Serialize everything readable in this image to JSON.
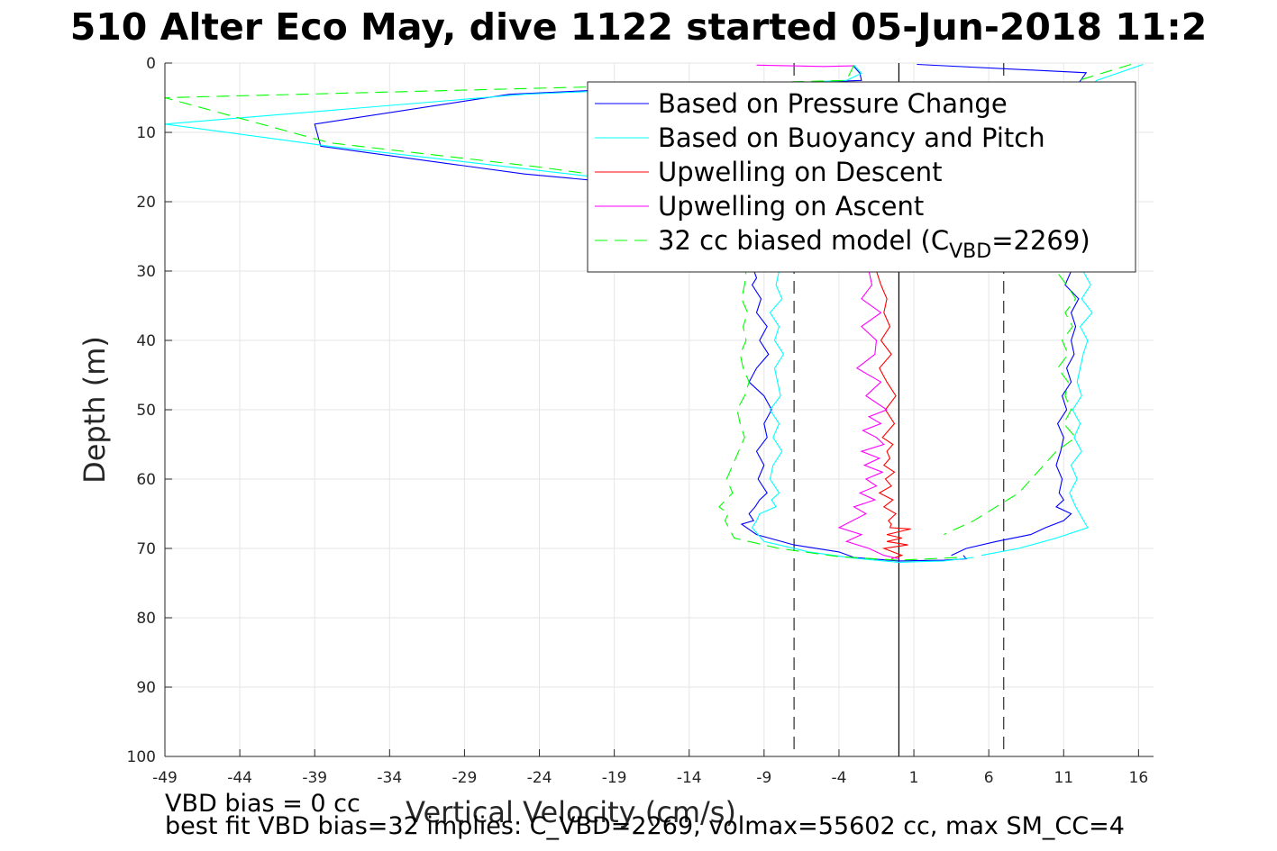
{
  "chart_data": {
    "type": "line",
    "title": "510 Alter Eco May, dive 1122 started 05-Jun-2018 11:2",
    "xlabel": "Vertical Velocity (cm/s)",
    "ylabel": "Depth (m)",
    "xlim": [
      -49,
      17
    ],
    "ylim": [
      0,
      100
    ],
    "y_reversed": true,
    "grid": true,
    "xticks": [
      "-49",
      "-44",
      "-39",
      "-34",
      "-29",
      "-24",
      "-19",
      "-14",
      "-9",
      "-4",
      "1",
      "6",
      "11",
      "16"
    ],
    "yticks": [
      "0",
      "10",
      "20",
      "30",
      "40",
      "50",
      "60",
      "70",
      "80",
      "90",
      "100"
    ],
    "legend_position": "top-right",
    "reference_lines": {
      "zero_velocity": 0,
      "dashed_vertical": [
        -7,
        7
      ]
    },
    "series": [
      {
        "name": "Based on Pressure Change",
        "color": "#0000ff",
        "dash": "solid",
        "segments": [
          {
            "x": [
              -3,
              -2.6,
              -2.5,
              -19,
              -26,
              -39,
              -38.6,
              -25,
              -20,
              -16,
              -14,
              -12.5,
              -11,
              -10,
              -9.5,
              -9.8,
              -9.2,
              -9.5,
              -8.8,
              -9.3,
              -8.7,
              -9.5,
              -10,
              -9,
              -8.5,
              -9,
              -8.8,
              -9.5,
              -9,
              -9.4,
              -8.8,
              -9.3,
              -9.6,
              -10,
              -9.7,
              -10.5,
              -9.5,
              -7,
              -4,
              -3,
              0,
              3,
              4.5,
              4.3
            ],
            "y": [
              0.5,
              1.5,
              2.5,
              3.8,
              4.5,
              8.8,
              12,
              16,
              17,
              18,
              19,
              22,
              25,
              28,
              31,
              32,
              34,
              36,
              38,
              40,
              42,
              44,
              46,
              48,
              50,
              52,
              54,
              56,
              58,
              60,
              62,
              63,
              64,
              65,
              66,
              66.5,
              68,
              69.5,
              70.5,
              71.3,
              71.8,
              71.7,
              71.5,
              71.0
            ]
          },
          {
            "x": [
              1.2,
              12.5,
              11.3,
              11.4,
              10.8,
              11.2,
              10.5,
              11.5,
              11.1,
              12,
              11.5,
              11.8,
              11.5,
              11.7,
              11.2,
              11.5,
              10.9,
              11.2,
              10.6,
              11.0,
              10.8,
              10.5,
              10.9,
              10.7,
              11.0,
              10.5,
              11.5,
              11.0,
              9.8,
              8.8,
              6.5,
              4.5,
              3.5
            ],
            "y": [
              0.2,
              1.4,
              5,
              10,
              15,
              20,
              25,
              30,
              32,
              34,
              36,
              38,
              40,
              42,
              44,
              46,
              48,
              50,
              52,
              54,
              56,
              58,
              60,
              62,
              63,
              64,
              65,
              66,
              67,
              68,
              69,
              70,
              71
            ]
          }
        ]
      },
      {
        "name": "Based on Buoyancy and Pitch",
        "color": "#00ffff",
        "dash": "solid",
        "segments": [
          {
            "x": [
              -3,
              -2.5,
              -3.5,
              -25,
              -49,
              -38,
              -24,
              -18,
              -15,
              -13,
              -11.5,
              -10.8,
              -8,
              -8.2,
              -7.8,
              -8.6,
              -8,
              -8.3,
              -7.7,
              -8.3,
              -8.1,
              -7.9,
              -8.6,
              -8,
              -8.4,
              -7.8,
              -8.4,
              -8.6,
              -8,
              -8.5,
              -8.2,
              -9.3,
              -9.5,
              -9.8,
              -9,
              -6,
              -3,
              0,
              3,
              5
            ],
            "y": [
              0.3,
              1.5,
              2.5,
              4.5,
              8.8,
              12,
              15.5,
              17,
              18,
              21,
              24,
              27,
              30,
              32,
              34,
              36,
              38,
              40,
              42,
              44,
              46,
              48,
              50,
              52,
              54,
              56,
              58,
              60,
              62,
              63,
              64,
              65,
              66,
              67,
              69,
              70.5,
              71.4,
              72,
              71.8,
              71.3
            ]
          },
          {
            "x": [
              16.3,
              13.2,
              12,
              12.2,
              12.6,
              11.8,
              12.6,
              12.3,
              12.8,
              12.2,
              12.9,
              12.1,
              12.6,
              12.3,
              12.1,
              11.9,
              12.2,
              11.6,
              12.1,
              11.7,
              12.2,
              11.5,
              11.9,
              11.4,
              11.8,
              12.6,
              10.5,
              8,
              5.5
            ],
            "y": [
              0.2,
              2.5,
              5,
              10,
              15,
              20,
              25,
              30,
              32,
              34,
              36,
              38,
              40,
              42,
              44,
              46,
              48,
              50,
              52,
              54,
              56,
              58,
              60,
              62,
              64,
              67,
              68.5,
              70,
              71
            ]
          }
        ]
      },
      {
        "name": "Upwelling on Descent",
        "color": "#ff0000",
        "dash": "solid",
        "segments": [
          {
            "x": [
              -1.5,
              -1.2,
              -0.8,
              -1,
              -0.6,
              -1.2,
              -0.5,
              -1.3,
              -0.8,
              -0.2,
              -0.9,
              -0.3,
              -1.1,
              -0.4,
              -0.8,
              -0.6,
              -1,
              -0.3,
              -0.9,
              -0.5,
              -1.3,
              -0.4,
              -1,
              -0.2,
              -0.7,
              -0.5,
              -0.6,
              0.8,
              -0.8,
              0.2,
              -0.8,
              0.6,
              -1,
              0.2,
              -0.5
            ],
            "y": [
              30,
              32,
              34,
              36,
              38,
              40,
              42,
              44,
              46,
              48,
              50,
              52,
              54,
              55,
              56,
              57,
              58,
              59,
              60,
              61,
              62,
              63,
              64,
              65,
              66,
              66.5,
              67,
              67.2,
              68,
              68.5,
              69,
              69.5,
              70,
              71,
              71.5
            ]
          }
        ]
      },
      {
        "name": "Upwelling on Ascent",
        "color": "#ff00ff",
        "dash": "solid",
        "segments": [
          {
            "x": [
              -9.5,
              -5,
              -3
            ],
            "y": [
              0.3,
              0.5,
              0.4
            ]
          },
          {
            "x": [
              -2,
              -1.8,
              -2.5,
              -1.2,
              -2.5,
              -1.5,
              -1.6,
              -2.8,
              -1.2,
              -2.2,
              -0.8,
              -2,
              -1.2,
              -2.4,
              -1.5,
              -1.0,
              -2.5,
              -1.3,
              -2.3,
              -1.1,
              -2.2,
              -1.5,
              -2.6,
              -1.6,
              -3,
              -2.2,
              -4,
              -2.5,
              -3.5,
              -2,
              -1,
              0
            ],
            "y": [
              30,
              32,
              34,
              36,
              38,
              40,
              42,
              44,
              46,
              48,
              50,
              51,
              52,
              53,
              54,
              55,
              56,
              57,
              58,
              59,
              60,
              61,
              62,
              63,
              64,
              65,
              67,
              68,
              69,
              70,
              71,
              71.5
            ]
          }
        ]
      },
      {
        "name": "32 cc biased model (C_VBD=2269)",
        "legend_main": "32 cc biased model (C",
        "legend_sub": "VBD",
        "legend_tail": "=2269)",
        "color": "#00ff00",
        "dash": "dashed",
        "segments": [
          {
            "x": [
              -3,
              -3.5,
              -49,
              -38,
              -24,
              -19,
              -16,
              -13,
              -11.5,
              -10.6,
              -10.2,
              -10.3,
              -10.5,
              -10.1,
              -10.4,
              -10.2,
              -10.6,
              -10.4,
              -10,
              -10.3,
              -10.8,
              -10.6,
              -10.3,
              -10.7,
              -11.5,
              -11.1,
              -12,
              -11.4,
              -11.6,
              -11,
              -8,
              -4,
              0,
              4
            ],
            "y": [
              0.3,
              2.5,
              5,
              11.5,
              15,
              16.5,
              17.5,
              19,
              22,
              26,
              30,
              32,
              34,
              36,
              38,
              40,
              42,
              44,
              46,
              48,
              50,
              52,
              54,
              56,
              60,
              62,
              64,
              65,
              66,
              68.5,
              70,
              71.2,
              71.7,
              71.3
            ]
          },
          {
            "x": [
              15.5,
              12,
              11.3,
              11.5,
              11,
              11.4,
              11.6,
              10.5,
              11.2,
              11.8,
              11.1,
              11.6,
              10.9,
              11.3,
              10.6,
              11.3,
              11.1,
              11.5,
              11.0,
              11.8,
              10.5,
              8,
              5,
              3
            ],
            "y": [
              0.2,
              2.5,
              5,
              10,
              15,
              20,
              25,
              30,
              32,
              34,
              36,
              38,
              40,
              42,
              44,
              46,
              48,
              50,
              52,
              54,
              56,
              62,
              66,
              68
            ]
          }
        ]
      }
    ]
  },
  "footer": {
    "line1": "VBD bias = 0 cc",
    "line2": "best fit VBD bias=32 implies: C_VBD=2269, volmax=55602 cc, max SM_CC=4"
  }
}
